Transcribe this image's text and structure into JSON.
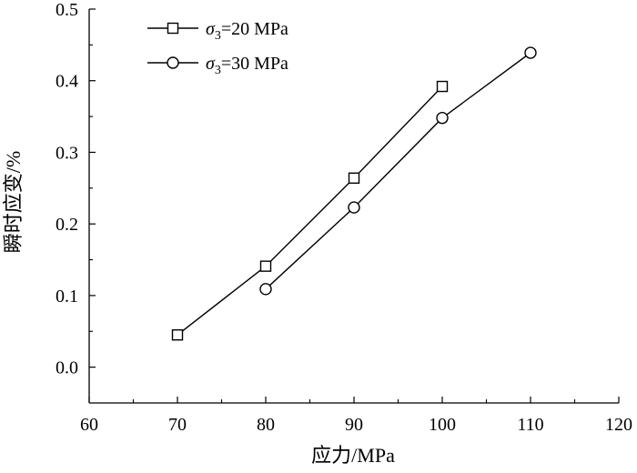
{
  "chart_data": {
    "type": "line",
    "xlabel": "应力/MPa",
    "ylabel": "瞬时应变/%",
    "xlim": [
      60,
      120
    ],
    "ylim": [
      -0.05,
      0.5
    ],
    "xticks": [
      60,
      70,
      80,
      90,
      100,
      110,
      120
    ],
    "yticks": [
      0.0,
      0.1,
      0.2,
      0.3,
      0.4,
      0.5
    ],
    "ytick_labels": [
      "0.0",
      "0.1",
      "0.2",
      "0.3",
      "0.4",
      "0.5"
    ],
    "grid": false,
    "legend_position": "top-left",
    "series": [
      {
        "name_prefix": "σ",
        "name_subscript": "3",
        "name_suffix": "=20 MPa",
        "marker": "square",
        "color": "#000000",
        "x": [
          70,
          80,
          90,
          100
        ],
        "y": [
          0.045,
          0.141,
          0.264,
          0.392
        ]
      },
      {
        "name_prefix": "σ",
        "name_subscript": "3",
        "name_suffix": "=30 MPa",
        "marker": "circle",
        "color": "#000000",
        "x": [
          80,
          90,
          100,
          110
        ],
        "y": [
          0.109,
          0.223,
          0.348,
          0.439
        ]
      }
    ]
  }
}
